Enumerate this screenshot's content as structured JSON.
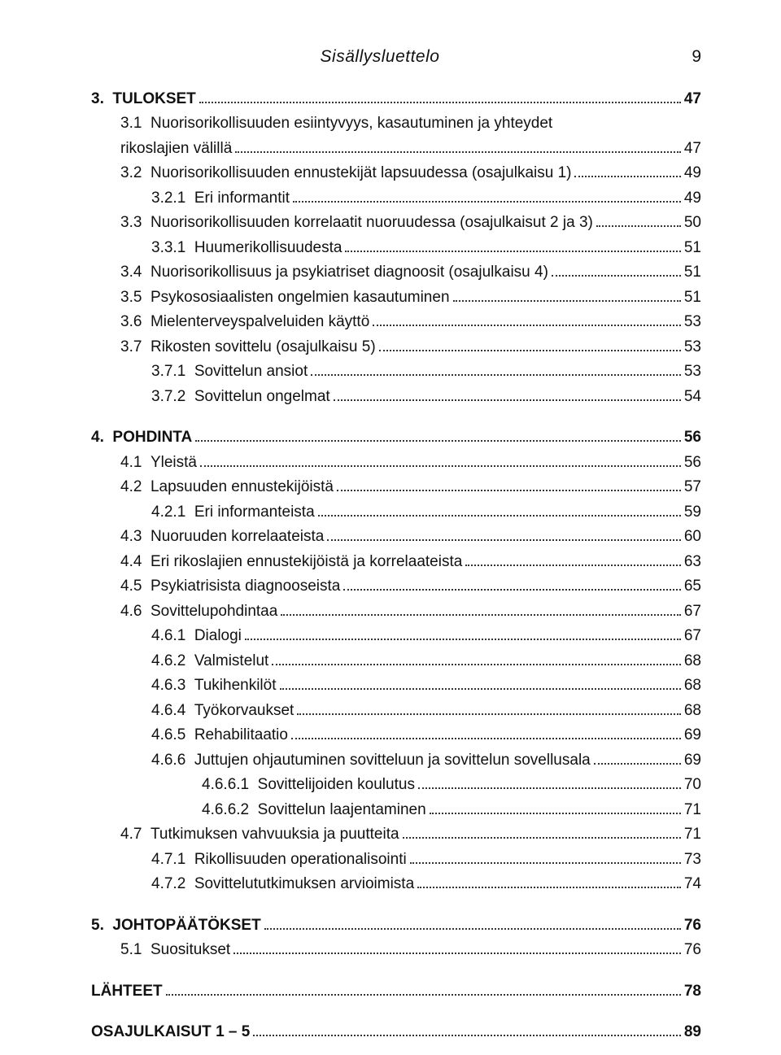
{
  "header": {
    "running_title": "Sisällysluettelo",
    "page_number": "9"
  },
  "toc": [
    {
      "level": 1,
      "num": "3.",
      "text": "TULOKSET",
      "page": "47"
    },
    {
      "level": 2,
      "num": "3.1",
      "text": "Nuorisorikollisuuden esiintyvyys, kasautuminen ja yhteydet rikoslajien välillä",
      "page": "47",
      "wrap": true
    },
    {
      "level": 2,
      "num": "3.2",
      "text": "Nuorisorikollisuuden ennustekijät lapsuudessa (osajulkaisu 1)",
      "page": "49"
    },
    {
      "level": 3,
      "num": "3.2.1",
      "text": "Eri informantit",
      "page": "49"
    },
    {
      "level": 2,
      "num": "3.3",
      "text": "Nuorisorikollisuuden korrelaatit nuoruudessa (osajulkaisut 2 ja 3)",
      "page": "50"
    },
    {
      "level": 3,
      "num": "3.3.1",
      "text": "Huumerikollisuudesta",
      "page": "51"
    },
    {
      "level": 2,
      "num": "3.4",
      "text": "Nuorisorikollisuus ja psykiatriset diagnoosit (osajulkaisu 4)",
      "page": "51"
    },
    {
      "level": 2,
      "num": "3.5",
      "text": "Psykososiaalisten ongelmien kasautuminen",
      "page": "51"
    },
    {
      "level": 2,
      "num": "3.6",
      "text": "Mielenterveyspalveluiden käyttö",
      "page": "53"
    },
    {
      "level": 2,
      "num": "3.7",
      "text": "Rikosten sovittelu (osajulkaisu 5)",
      "page": "53"
    },
    {
      "level": 3,
      "num": "3.7.1",
      "text": "Sovittelun ansiot",
      "page": "53"
    },
    {
      "level": 3,
      "num": "3.7.2",
      "text": "Sovittelun ongelmat",
      "page": "54"
    },
    {
      "level": 1,
      "num": "4.",
      "text": "POHDINTA",
      "page": "56",
      "gap": true
    },
    {
      "level": 2,
      "num": "4.1",
      "text": "Yleistä",
      "page": "56"
    },
    {
      "level": 2,
      "num": "4.2",
      "text": "Lapsuuden ennustekijöistä",
      "page": "57"
    },
    {
      "level": 3,
      "num": "4.2.1",
      "text": "Eri informanteista",
      "page": "59"
    },
    {
      "level": 2,
      "num": "4.3",
      "text": "Nuoruuden korrelaateista",
      "page": "60"
    },
    {
      "level": 2,
      "num": "4.4",
      "text": "Eri rikoslajien ennustekijöistä ja korrelaateista",
      "page": "63"
    },
    {
      "level": 2,
      "num": "4.5",
      "text": "Psykiatrisista diagnooseista",
      "page": "65"
    },
    {
      "level": 2,
      "num": "4.6",
      "text": "Sovittelupohdintaa",
      "page": "67"
    },
    {
      "level": 3,
      "num": "4.6.1",
      "text": "Dialogi",
      "page": "67"
    },
    {
      "level": 3,
      "num": "4.6.2",
      "text": "Valmistelut",
      "page": "68"
    },
    {
      "level": 3,
      "num": "4.6.3",
      "text": "Tukihenkilöt",
      "page": "68"
    },
    {
      "level": 3,
      "num": "4.6.4",
      "text": "Työkorvaukset",
      "page": "68"
    },
    {
      "level": 3,
      "num": "4.6.5",
      "text": "Rehabilitaatio",
      "page": "69"
    },
    {
      "level": 3,
      "num": "4.6.6",
      "text": "Juttujen ohjautuminen sovitteluun ja sovittelun sovellusala",
      "page": "69"
    },
    {
      "level": 4,
      "num": "4.6.6.1",
      "text": "Sovittelijoiden koulutus",
      "page": "70"
    },
    {
      "level": 4,
      "num": "4.6.6.2",
      "text": "Sovittelun laajentaminen",
      "page": "71"
    },
    {
      "level": 2,
      "num": "4.7",
      "text": "Tutkimuksen vahvuuksia ja puutteita",
      "page": "71"
    },
    {
      "level": 3,
      "num": "4.7.1",
      "text": "Rikollisuuden operationalisointi",
      "page": "73"
    },
    {
      "level": 3,
      "num": "4.7.2",
      "text": "Sovittelututkimuksen arvioimista",
      "page": "74"
    },
    {
      "level": 1,
      "num": "5.",
      "text": "JOHTOPÄÄTÖKSET",
      "page": "76",
      "gap": true
    },
    {
      "level": 2,
      "num": "5.1",
      "text": "Suositukset",
      "page": "76"
    },
    {
      "level": 1,
      "num": "",
      "text": "LÄHTEET",
      "page": "78",
      "gap": true,
      "flush": true
    },
    {
      "level": 1,
      "num": "",
      "text": "OSAJULKAISUT 1 – 5",
      "page": "89",
      "gap": true,
      "flush": true
    }
  ]
}
